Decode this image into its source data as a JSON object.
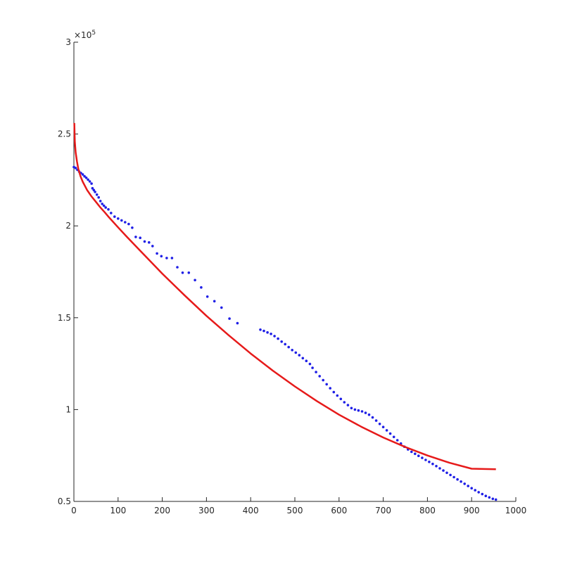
{
  "chart_data": {
    "type": "scatter",
    "title": "",
    "xlabel": "",
    "ylabel": "",
    "xlim": [
      0,
      1000
    ],
    "ylim": [
      50000,
      300000
    ],
    "x_ticks": [
      0,
      100,
      200,
      300,
      400,
      500,
      600,
      700,
      800,
      900,
      1000
    ],
    "x_tick_labels": [
      "0",
      "100",
      "200",
      "300",
      "400",
      "500",
      "600",
      "700",
      "800",
      "900",
      "1000"
    ],
    "y_ticks": [
      50000,
      100000,
      150000,
      200000,
      250000,
      300000
    ],
    "y_tick_labels": [
      "0.5",
      "1",
      "1.5",
      "2",
      "2.5",
      "3"
    ],
    "y_exponent_base": "×10",
    "y_exponent_power": "5",
    "grid": false,
    "series": [
      {
        "style": "dots",
        "color": "#1f1fe6",
        "points": [
          [
            0,
            232000
          ],
          [
            4,
            231500
          ],
          [
            8,
            230500
          ],
          [
            12,
            229500
          ],
          [
            16,
            228800
          ],
          [
            20,
            228000
          ],
          [
            24,
            227000
          ],
          [
            28,
            226200
          ],
          [
            32,
            225200
          ],
          [
            36,
            224200
          ],
          [
            40,
            223000
          ],
          [
            42,
            220500
          ],
          [
            45,
            219500
          ],
          [
            48,
            218500
          ],
          [
            52,
            217000
          ],
          [
            56,
            215500
          ],
          [
            60,
            213500
          ],
          [
            64,
            212000
          ],
          [
            68,
            211000
          ],
          [
            72,
            210000
          ],
          [
            78,
            209000
          ],
          [
            84,
            207000
          ],
          [
            92,
            205000
          ],
          [
            100,
            204000
          ],
          [
            108,
            203000
          ],
          [
            116,
            202000
          ],
          [
            124,
            201000
          ],
          [
            132,
            199000
          ],
          [
            140,
            194000
          ],
          [
            150,
            193500
          ],
          [
            160,
            191500
          ],
          [
            170,
            191000
          ],
          [
            178,
            189000
          ],
          [
            188,
            185000
          ],
          [
            198,
            183500
          ],
          [
            210,
            182500
          ],
          [
            222,
            182500
          ],
          [
            234,
            177500
          ],
          [
            246,
            174500
          ],
          [
            260,
            174500
          ],
          [
            274,
            170500
          ],
          [
            288,
            166500
          ],
          [
            302,
            161500
          ],
          [
            318,
            159000
          ],
          [
            334,
            155500
          ],
          [
            352,
            149500
          ],
          [
            370,
            147000
          ],
          [
            422,
            143500
          ],
          [
            430,
            142800
          ],
          [
            438,
            142000
          ],
          [
            446,
            141200
          ],
          [
            454,
            140000
          ],
          [
            462,
            138600
          ],
          [
            470,
            137000
          ],
          [
            478,
            135600
          ],
          [
            486,
            134000
          ],
          [
            494,
            132400
          ],
          [
            502,
            131000
          ],
          [
            510,
            129600
          ],
          [
            518,
            128000
          ],
          [
            526,
            126500
          ],
          [
            534,
            124800
          ],
          [
            540,
            122700
          ],
          [
            548,
            120400
          ],
          [
            556,
            118200
          ],
          [
            564,
            116000
          ],
          [
            572,
            113800
          ],
          [
            580,
            111600
          ],
          [
            588,
            109500
          ],
          [
            596,
            107600
          ],
          [
            604,
            105800
          ],
          [
            612,
            104000
          ],
          [
            620,
            102400
          ],
          [
            628,
            100800
          ],
          [
            636,
            100000
          ],
          [
            644,
            99500
          ],
          [
            652,
            99000
          ],
          [
            660,
            98200
          ],
          [
            668,
            97200
          ],
          [
            676,
            95700
          ],
          [
            684,
            94000
          ],
          [
            692,
            92200
          ],
          [
            700,
            90500
          ],
          [
            708,
            88700
          ],
          [
            716,
            86900
          ],
          [
            724,
            85100
          ],
          [
            732,
            83300
          ],
          [
            740,
            81500
          ],
          [
            748,
            79800
          ],
          [
            756,
            78300
          ],
          [
            764,
            77000
          ],
          [
            772,
            75900
          ],
          [
            780,
            74800
          ],
          [
            788,
            73700
          ],
          [
            796,
            72600
          ],
          [
            804,
            71500
          ],
          [
            812,
            70400
          ],
          [
            820,
            69200
          ],
          [
            828,
            68000
          ],
          [
            836,
            66800
          ],
          [
            844,
            65600
          ],
          [
            852,
            64400
          ],
          [
            860,
            63200
          ],
          [
            868,
            62000
          ],
          [
            876,
            60800
          ],
          [
            884,
            59600
          ],
          [
            892,
            58400
          ],
          [
            900,
            57200
          ],
          [
            908,
            56100
          ],
          [
            916,
            55000
          ],
          [
            924,
            54000
          ],
          [
            932,
            53000
          ],
          [
            940,
            52200
          ],
          [
            948,
            51400
          ],
          [
            955,
            51000
          ]
        ]
      },
      {
        "style": "line",
        "color": "#e61a1a",
        "points": [
          [
            1,
            256000
          ],
          [
            2,
            246000
          ],
          [
            4,
            240000
          ],
          [
            7,
            235000
          ],
          [
            10,
            231000
          ],
          [
            15,
            227000
          ],
          [
            20,
            224000
          ],
          [
            30,
            219500
          ],
          [
            40,
            216000
          ],
          [
            50,
            213000
          ],
          [
            60,
            210000
          ],
          [
            70,
            207300
          ],
          [
            80,
            204500
          ],
          [
            100,
            199200
          ],
          [
            120,
            194000
          ],
          [
            150,
            186500
          ],
          [
            200,
            174000
          ],
          [
            250,
            162300
          ],
          [
            300,
            151000
          ],
          [
            350,
            140500
          ],
          [
            400,
            130500
          ],
          [
            450,
            121200
          ],
          [
            500,
            112600
          ],
          [
            550,
            104600
          ],
          [
            600,
            97200
          ],
          [
            650,
            90700
          ],
          [
            700,
            84800
          ],
          [
            750,
            79600
          ],
          [
            800,
            75000
          ],
          [
            850,
            71000
          ],
          [
            900,
            67800
          ],
          [
            955,
            67500
          ]
        ]
      }
    ]
  }
}
